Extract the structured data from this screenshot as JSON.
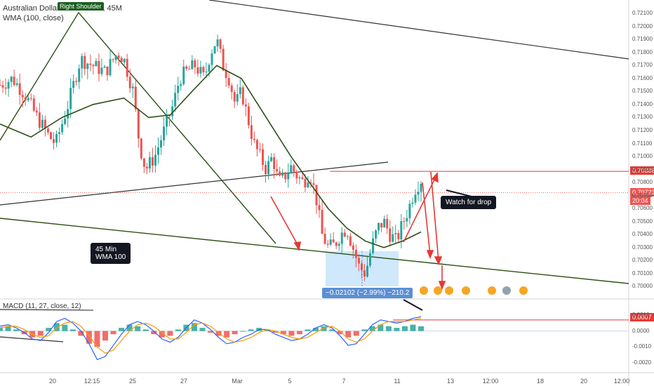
{
  "header": {
    "symbol": "Australian Dollar / U.S. Dollar, 45",
    "symbol_suffix": "M",
    "indicator": "WMA (100, close)",
    "macd_label": "MACD (11, 27, close, 12)"
  },
  "annotations": {
    "right_shoulder": "Right Shoulder",
    "wma_note": "45 Min\nWMA 100",
    "watch_note": "Watch for drop",
    "measure": "−0.02102 (−2.99%) −210.2"
  },
  "price_tags": {
    "resistance": "0.70886",
    "current": "0.70723",
    "countdown": "20:04",
    "macd_value": "0.0007"
  },
  "colors": {
    "up": "#26a69a",
    "down": "#ef5350",
    "wma": "#2d5016",
    "price_red": "#e53935",
    "macd_line": "#2962ff",
    "signal_line": "#ff9800",
    "measure_box": "#bbdefb"
  },
  "chart_data": {
    "type": "candlestick",
    "title": "Australian Dollar / U.S. Dollar, 45",
    "x_ticks": [
      "20",
      "12:15",
      "25",
      "27",
      "Mar",
      "5",
      "7",
      "11",
      "13",
      "12:00",
      "18",
      "20",
      "12:00"
    ],
    "y_ticks": [
      "0.72100",
      "0.72000",
      "0.71900",
      "0.71800",
      "0.71700",
      "0.71600",
      "0.71500",
      "0.71400",
      "0.71300",
      "0.71200",
      "0.71100",
      "0.71000",
      "0.70900",
      "0.70800",
      "0.70700",
      "0.70600",
      "0.70500",
      "0.70400",
      "0.70300",
      "0.70200",
      "0.70100",
      "0.70000"
    ],
    "ylim": [
      0.6998,
      0.7215
    ],
    "price_path": [
      [
        0,
        0.7155
      ],
      [
        4,
        0.716
      ],
      [
        8,
        0.7148
      ],
      [
        12,
        0.713
      ],
      [
        16,
        0.7115
      ],
      [
        18,
        0.711
      ],
      [
        22,
        0.714
      ],
      [
        26,
        0.7175
      ],
      [
        30,
        0.717
      ],
      [
        34,
        0.7165
      ],
      [
        38,
        0.718
      ],
      [
        40,
        0.7175
      ],
      [
        43,
        0.715
      ],
      [
        45,
        0.711
      ],
      [
        47,
        0.709
      ],
      [
        50,
        0.71
      ],
      [
        53,
        0.712
      ],
      [
        56,
        0.714
      ],
      [
        58,
        0.716
      ],
      [
        60,
        0.7165
      ],
      [
        63,
        0.717
      ],
      [
        66,
        0.716
      ],
      [
        68,
        0.718
      ],
      [
        70,
        0.719
      ],
      [
        72,
        0.717
      ],
      [
        74,
        0.716
      ],
      [
        76,
        0.714
      ],
      [
        78,
        0.715
      ],
      [
        80,
        0.713
      ],
      [
        82,
        0.711
      ],
      [
        84,
        0.71
      ],
      [
        86,
        0.709
      ],
      [
        88,
        0.71
      ],
      [
        90,
        0.708
      ],
      [
        92,
        0.7085
      ],
      [
        94,
        0.7092
      ],
      [
        96,
        0.7085
      ],
      [
        98,
        0.708
      ],
      [
        100,
        0.7088
      ],
      [
        102,
        0.707
      ],
      [
        104,
        0.704
      ],
      [
        106,
        0.703
      ],
      [
        108,
        0.7032
      ],
      [
        110,
        0.704
      ],
      [
        112,
        0.7045
      ],
      [
        114,
        0.703
      ],
      [
        116,
        0.7015
      ],
      [
        118,
        0.701
      ],
      [
        120,
        0.703
      ],
      [
        122,
        0.7045
      ],
      [
        124,
        0.705
      ],
      [
        126,
        0.704
      ],
      [
        128,
        0.7035
      ],
      [
        130,
        0.7048
      ],
      [
        132,
        0.706
      ],
      [
        134,
        0.7075
      ],
      [
        136,
        0.7082
      ]
    ],
    "wma_path": [
      [
        0,
        0.7125
      ],
      [
        10,
        0.7115
      ],
      [
        20,
        0.713
      ],
      [
        30,
        0.714
      ],
      [
        40,
        0.7145
      ],
      [
        48,
        0.713
      ],
      [
        55,
        0.7132
      ],
      [
        62,
        0.715
      ],
      [
        70,
        0.717
      ],
      [
        78,
        0.716
      ],
      [
        86,
        0.713
      ],
      [
        94,
        0.71
      ],
      [
        100,
        0.708
      ],
      [
        106,
        0.706
      ],
      [
        112,
        0.7045
      ],
      [
        118,
        0.7035
      ],
      [
        124,
        0.703
      ],
      [
        130,
        0.7035
      ],
      [
        136,
        0.7042
      ]
    ],
    "resistance_level": 0.70886,
    "current_price": 0.70723,
    "macd": {
      "label": "MACD (11, 27, close, 12)",
      "y_ticks": [
        "0.0010",
        "0.0007",
        "0.0000",
        "-0.0010",
        "-0.0020"
      ],
      "ylim": [
        -0.0024,
        0.0014
      ],
      "histogram": [
        0.0002,
        0.0003,
        0.0001,
        -0.0002,
        -0.0004,
        -0.0003,
        0.0002,
        0.0005,
        0.0004,
        0.0001,
        -0.0003,
        -0.0008,
        -0.001,
        -0.0006,
        -0.0002,
        0.0002,
        0.0004,
        0.0003,
        0.0001,
        -0.0002,
        -0.0004,
        -0.0003,
        0.0001,
        0.0004,
        0.0005,
        0.0002,
        -0.0001,
        -0.0003,
        -0.0004,
        -0.0002,
        0.0,
        0.0001,
        0.0002,
        0.0001,
        -0.0001,
        -0.0002,
        -0.0003,
        -0.0002,
        0.0001,
        0.0002,
        0.0003,
        0.0001,
        -0.0002,
        -0.0004,
        -0.0003,
        0.0001,
        0.0003,
        0.0004,
        0.0003,
        0.0002,
        0.0003,
        0.0004,
        0.0003
      ],
      "macd_line": [
        0.0003,
        0.0004,
        0.0002,
        -0.0001,
        -0.0005,
        -0.0006,
        -0.0001,
        0.0006,
        0.0008,
        0.0005,
        0.0,
        -0.0008,
        -0.0018,
        -0.0016,
        -0.0009,
        -0.0002,
        0.0004,
        0.0006,
        0.0004,
        0.0,
        -0.0005,
        -0.0007,
        -0.0004,
        0.0002,
        0.0007,
        0.0005,
        0.0001,
        -0.0004,
        -0.0008,
        -0.0007,
        -0.0004,
        -0.0002,
        0.0001,
        0.0001,
        -0.0002,
        -0.0004,
        -0.0006,
        -0.0005,
        -0.0002,
        0.0002,
        0.0004,
        0.0002,
        -0.0003,
        -0.0009,
        -0.0008,
        -0.0002,
        0.0004,
        0.0007,
        0.0006,
        0.0005,
        0.0006,
        0.0008,
        0.0009
      ],
      "signal_line": [
        0.0002,
        0.0003,
        0.0003,
        0.0001,
        -0.0002,
        -0.0004,
        -0.0003,
        0.0002,
        0.0005,
        0.0006,
        0.0003,
        -0.0003,
        -0.001,
        -0.0014,
        -0.0012,
        -0.0006,
        0.0,
        0.0004,
        0.0005,
        0.0003,
        -0.0001,
        -0.0005,
        -0.0005,
        -0.0001,
        0.0004,
        0.0005,
        0.0003,
        -0.0001,
        -0.0005,
        -0.0007,
        -0.0006,
        -0.0004,
        -0.0001,
        0.0001,
        0.0,
        -0.0002,
        -0.0004,
        -0.0005,
        -0.0004,
        -0.0001,
        0.0002,
        0.0003,
        0.0,
        -0.0005,
        -0.0007,
        -0.0005,
        0.0,
        0.0004,
        0.0006,
        0.0006,
        0.0006,
        0.0007,
        0.0008
      ]
    }
  }
}
